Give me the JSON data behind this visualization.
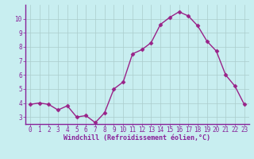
{
  "x": [
    0,
    1,
    2,
    3,
    4,
    5,
    6,
    7,
    8,
    9,
    10,
    11,
    12,
    13,
    14,
    15,
    16,
    17,
    18,
    19,
    20,
    21,
    22,
    23
  ],
  "y": [
    3.9,
    4.0,
    3.9,
    3.5,
    3.8,
    3.0,
    3.1,
    2.6,
    3.3,
    5.0,
    5.5,
    7.5,
    7.8,
    8.3,
    9.6,
    10.1,
    10.5,
    10.2,
    9.5,
    8.4,
    7.7,
    6.0,
    5.2,
    3.9
  ],
  "line_color": "#992288",
  "marker": "D",
  "marker_size": 2.5,
  "xlabel": "Windchill (Refroidissement éolien,°C)",
  "ylim": [
    2.5,
    11.0
  ],
  "xlim": [
    -0.5,
    23.5
  ],
  "yticks": [
    3,
    4,
    5,
    6,
    7,
    8,
    9,
    10
  ],
  "xticks": [
    0,
    1,
    2,
    3,
    4,
    5,
    6,
    7,
    8,
    9,
    10,
    11,
    12,
    13,
    14,
    15,
    16,
    17,
    18,
    19,
    20,
    21,
    22,
    23
  ],
  "bg_color": "#c8eef0",
  "grid_color": "#aacccc",
  "font_color": "#882299",
  "tick_fontsize": 5.5,
  "xlabel_fontsize": 6.0,
  "linewidth": 1.0
}
